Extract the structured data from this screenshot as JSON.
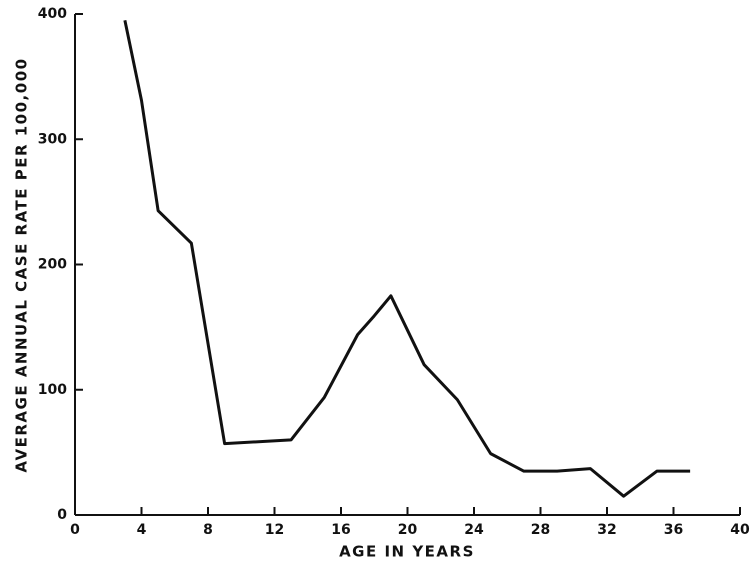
{
  "chart_data": {
    "type": "line",
    "x_label": "AGE IN YEARS",
    "y_label": "AVERAGE ANNUAL CASE RATE PER 100,000",
    "x": [
      3,
      4,
      5,
      7,
      9,
      13,
      15,
      17,
      18,
      19,
      21,
      23,
      25,
      27,
      29,
      31,
      33,
      35,
      37
    ],
    "values": [
      395,
      331,
      243,
      217,
      57,
      60,
      94,
      144,
      159,
      175,
      120,
      92,
      49,
      35,
      35,
      37,
      15,
      35,
      35
    ],
    "color": "#111111",
    "xlim": [
      0,
      40
    ],
    "xticks": [
      0,
      4,
      8,
      12,
      16,
      20,
      24,
      28,
      32,
      36,
      40
    ],
    "ylim": [
      0,
      400
    ],
    "yticks": [
      0,
      100,
      200,
      300,
      400
    ],
    "grid": false
  }
}
